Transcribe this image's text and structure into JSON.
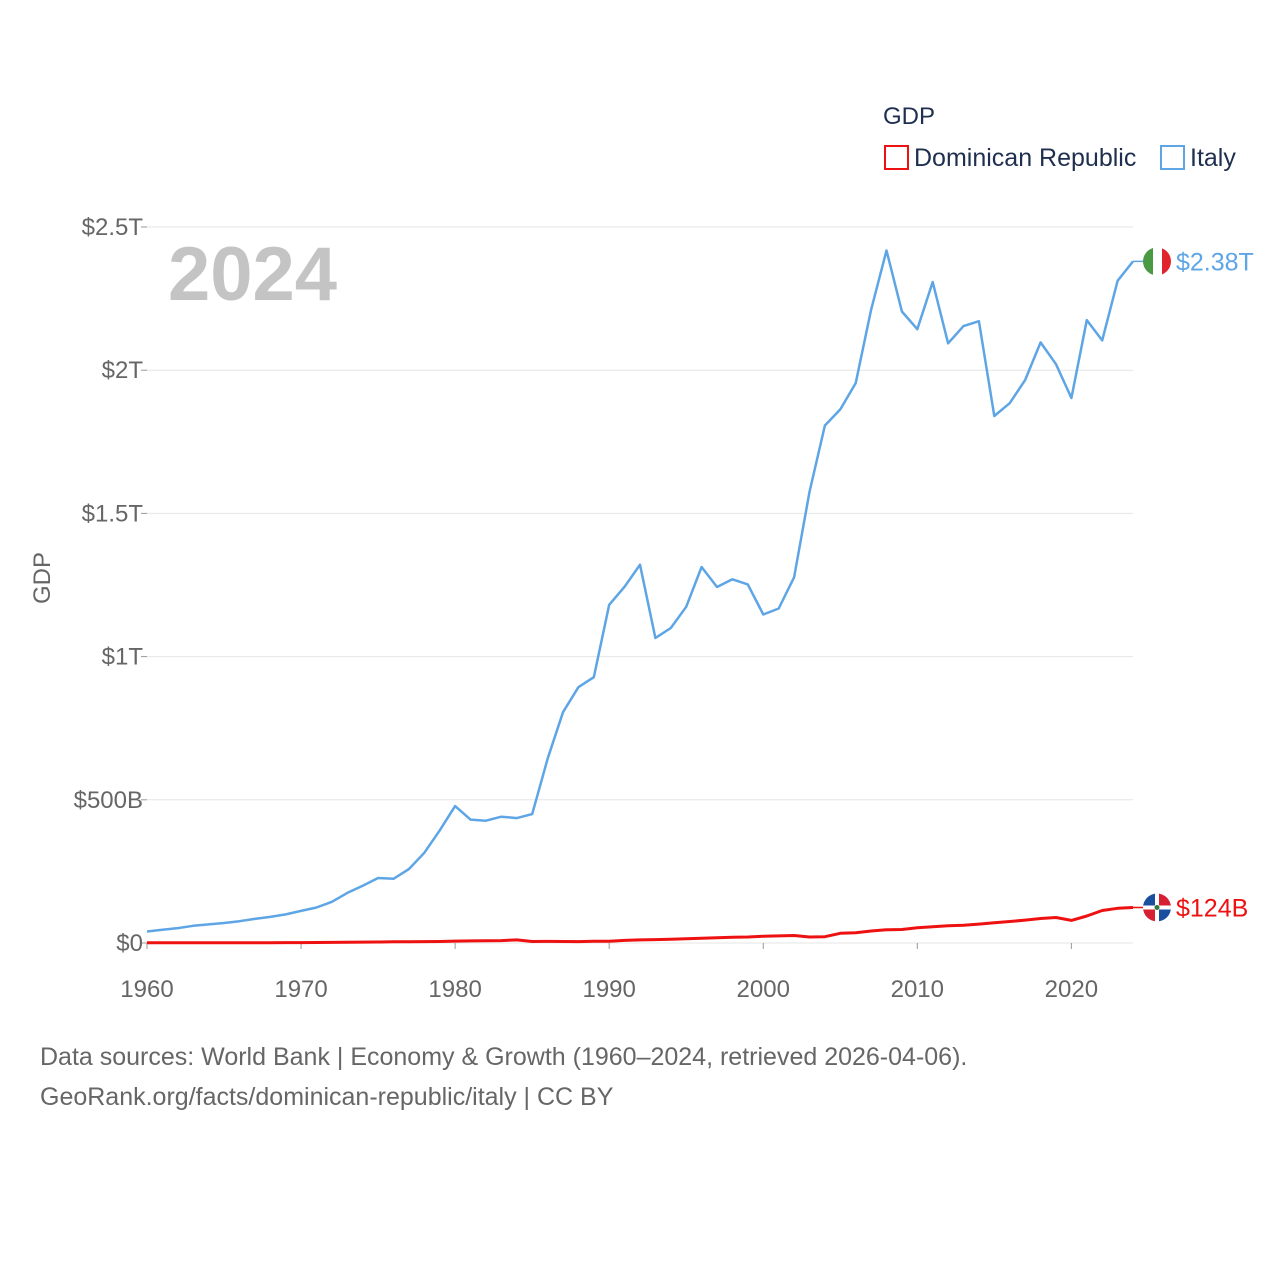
{
  "colors": {
    "dominican": "#ee1111",
    "italy": "#5ea5e6",
    "grid": "#e6e6e6",
    "text": "#666666"
  },
  "chart_data": {
    "type": "line",
    "title": "",
    "xlabel": "",
    "ylabel": "GDP",
    "year_label": "2024",
    "legend_title": "GDP",
    "legend_placement": "top-right",
    "xlim": [
      1960,
      2024
    ],
    "ylim": [
      0,
      2500
    ],
    "y_unit": "billions USD",
    "x_ticks": [
      {
        "value": 1960,
        "label": "1960"
      },
      {
        "value": 1970,
        "label": "1970"
      },
      {
        "value": 1980,
        "label": "1980"
      },
      {
        "value": 1990,
        "label": "1990"
      },
      {
        "value": 2000,
        "label": "2000"
      },
      {
        "value": 2010,
        "label": "2010"
      },
      {
        "value": 2020,
        "label": "2020"
      }
    ],
    "y_ticks": [
      {
        "value": 0,
        "label": "$0"
      },
      {
        "value": 500,
        "label": "$500B"
      },
      {
        "value": 1000,
        "label": "$1T"
      },
      {
        "value": 1500,
        "label": "$1.5T"
      },
      {
        "value": 2000,
        "label": "$2T"
      },
      {
        "value": 2500,
        "label": "$2.5T"
      }
    ],
    "x": [
      1960,
      1961,
      1962,
      1963,
      1964,
      1965,
      1966,
      1967,
      1968,
      1969,
      1970,
      1971,
      1972,
      1973,
      1974,
      1975,
      1976,
      1977,
      1978,
      1979,
      1980,
      1981,
      1982,
      1983,
      1984,
      1985,
      1986,
      1987,
      1988,
      1989,
      1990,
      1991,
      1992,
      1993,
      1994,
      1995,
      1996,
      1997,
      1998,
      1999,
      2000,
      2001,
      2002,
      2003,
      2004,
      2005,
      2006,
      2007,
      2008,
      2009,
      2010,
      2011,
      2012,
      2013,
      2014,
      2015,
      2016,
      2017,
      2018,
      2019,
      2020,
      2021,
      2022,
      2023,
      2024
    ],
    "series": [
      {
        "name": "Dominican Republic",
        "color": "#ee1111",
        "end_label": "$124B",
        "values": [
          0.7,
          0.8,
          0.9,
          1.0,
          1.1,
          0.9,
          1.0,
          1.1,
          1.2,
          1.4,
          1.5,
          1.7,
          2.1,
          2.5,
          3.0,
          3.6,
          4.1,
          4.5,
          4.9,
          5.4,
          6.7,
          7.3,
          7.8,
          8.4,
          10.8,
          5.1,
          5.6,
          5.4,
          4.8,
          6.1,
          6.3,
          9.1,
          10.7,
          12.0,
          13.3,
          15.1,
          16.6,
          18.6,
          20.0,
          20.9,
          23.8,
          24.9,
          26.1,
          20.9,
          22.0,
          34.0,
          36.0,
          42.0,
          46.0,
          47.0,
          53.0,
          57.0,
          60.0,
          62.0,
          66.0,
          71.0,
          75.0,
          80.0,
          85.6,
          89.0,
          78.8,
          94.2,
          113.6,
          121.0,
          124.0
        ]
      },
      {
        "name": "Italy",
        "color": "#5ea5e6",
        "end_label": "$2.38T",
        "values": [
          40,
          46,
          52,
          60,
          65,
          70,
          76,
          84,
          91,
          100,
          112,
          124,
          144,
          175,
          200,
          227,
          224,
          258,
          315,
          393,
          478,
          431,
          427,
          441,
          436,
          450,
          643,
          806,
          893,
          928,
          1181,
          1244,
          1321,
          1065,
          1100,
          1174,
          1313,
          1243,
          1270,
          1252,
          1147,
          1168,
          1277,
          1575,
          1807,
          1863,
          1955,
          2211,
          2418,
          2205,
          2143,
          2308,
          2094,
          2154,
          2171,
          1840,
          1885,
          1966,
          2097,
          2021,
          1903,
          2175,
          2104,
          2312,
          2380
        ]
      }
    ]
  },
  "footer": {
    "line1": "Data sources: World Bank | Economy & Growth (1960–2024, retrieved 2026-04-06).",
    "line2": "GeoRank.org/facts/dominican-republic/italy | CC BY"
  }
}
